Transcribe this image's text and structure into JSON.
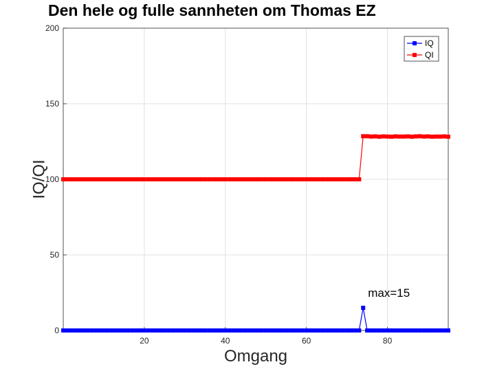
{
  "chart_data": {
    "type": "line",
    "title": "Den hele og fulle sannheten om Thomas EZ",
    "xlabel": "Omgang",
    "ylabel": "IQ/QI",
    "xlim": [
      0,
      95
    ],
    "ylim": [
      0,
      200
    ],
    "xticks": [
      20,
      40,
      60,
      80
    ],
    "yticks": [
      0,
      50,
      100,
      150,
      200
    ],
    "grid": true,
    "legend_position": "top-right",
    "annotation": {
      "text": "max=15",
      "x": 74,
      "y": 15
    },
    "series": [
      {
        "name": "IQ",
        "color": "#0000ff",
        "marker": "square",
        "x": [
          0,
          1,
          2,
          3,
          4,
          5,
          6,
          7,
          8,
          9,
          10,
          11,
          12,
          13,
          14,
          15,
          16,
          17,
          18,
          19,
          20,
          21,
          22,
          23,
          24,
          25,
          26,
          27,
          28,
          29,
          30,
          31,
          32,
          33,
          34,
          35,
          36,
          37,
          38,
          39,
          40,
          41,
          42,
          43,
          44,
          45,
          46,
          47,
          48,
          49,
          50,
          51,
          52,
          53,
          54,
          55,
          56,
          57,
          58,
          59,
          60,
          61,
          62,
          63,
          64,
          65,
          66,
          67,
          68,
          69,
          70,
          71,
          72,
          73,
          74,
          75,
          76,
          77,
          78,
          79,
          80,
          81,
          82,
          83,
          84,
          85,
          86,
          87,
          88,
          89,
          90,
          91,
          92,
          93,
          94,
          95
        ],
        "y": [
          0,
          0,
          0,
          0,
          0,
          0,
          0,
          0,
          0,
          0,
          0,
          0,
          0,
          0,
          0,
          0,
          0,
          0,
          0,
          0,
          0,
          0,
          0,
          0,
          0,
          0,
          0,
          0,
          0,
          0,
          0,
          0,
          0,
          0,
          0,
          0,
          0,
          0,
          0,
          0,
          0,
          0,
          0,
          0,
          0,
          0,
          0,
          0,
          0,
          0,
          0,
          0,
          0,
          0,
          0,
          0,
          0,
          0,
          0,
          0,
          0,
          0,
          0,
          0,
          0,
          0,
          0,
          0,
          0,
          0,
          0,
          0,
          0,
          0,
          15,
          0,
          0,
          0,
          0,
          0,
          0,
          0,
          0,
          0,
          0,
          0,
          0,
          0,
          0,
          0,
          0,
          0,
          0,
          0,
          0,
          0
        ]
      },
      {
        "name": "QI",
        "color": "#ff0000",
        "marker": "square",
        "x": [
          0,
          1,
          2,
          3,
          4,
          5,
          6,
          7,
          8,
          9,
          10,
          11,
          12,
          13,
          14,
          15,
          16,
          17,
          18,
          19,
          20,
          21,
          22,
          23,
          24,
          25,
          26,
          27,
          28,
          29,
          30,
          31,
          32,
          33,
          34,
          35,
          36,
          37,
          38,
          39,
          40,
          41,
          42,
          43,
          44,
          45,
          46,
          47,
          48,
          49,
          50,
          51,
          52,
          53,
          54,
          55,
          56,
          57,
          58,
          59,
          60,
          61,
          62,
          63,
          64,
          65,
          66,
          67,
          68,
          69,
          70,
          71,
          72,
          73,
          74,
          75,
          76,
          77,
          78,
          79,
          80,
          81,
          82,
          83,
          84,
          85,
          86,
          87,
          88,
          89,
          90,
          91,
          92,
          93,
          94,
          95
        ],
        "y": [
          100,
          100,
          100,
          100,
          100,
          100,
          100,
          100,
          100,
          100,
          100,
          100,
          100,
          100,
          100,
          100,
          100,
          100,
          100,
          100,
          100,
          100,
          100,
          100,
          100,
          100,
          100,
          100,
          100,
          100,
          100,
          100,
          100,
          100,
          100,
          100,
          100,
          100,
          100,
          100,
          100,
          100,
          100,
          100,
          100,
          100,
          100,
          100,
          100,
          100,
          100,
          100,
          100,
          100,
          100,
          100,
          100,
          100,
          100,
          100,
          100,
          100,
          100,
          100,
          100,
          100,
          100,
          100,
          100,
          100,
          100,
          100,
          100,
          100,
          128.5,
          128.5,
          128.3,
          128.4,
          128.2,
          128.4,
          128.3,
          128.2,
          128.4,
          128.3,
          128.3,
          128.4,
          128.2,
          128.4,
          128.5,
          128.3,
          128.4,
          128.2,
          128.3,
          128.3,
          128.4,
          128.2
        ]
      }
    ]
  }
}
